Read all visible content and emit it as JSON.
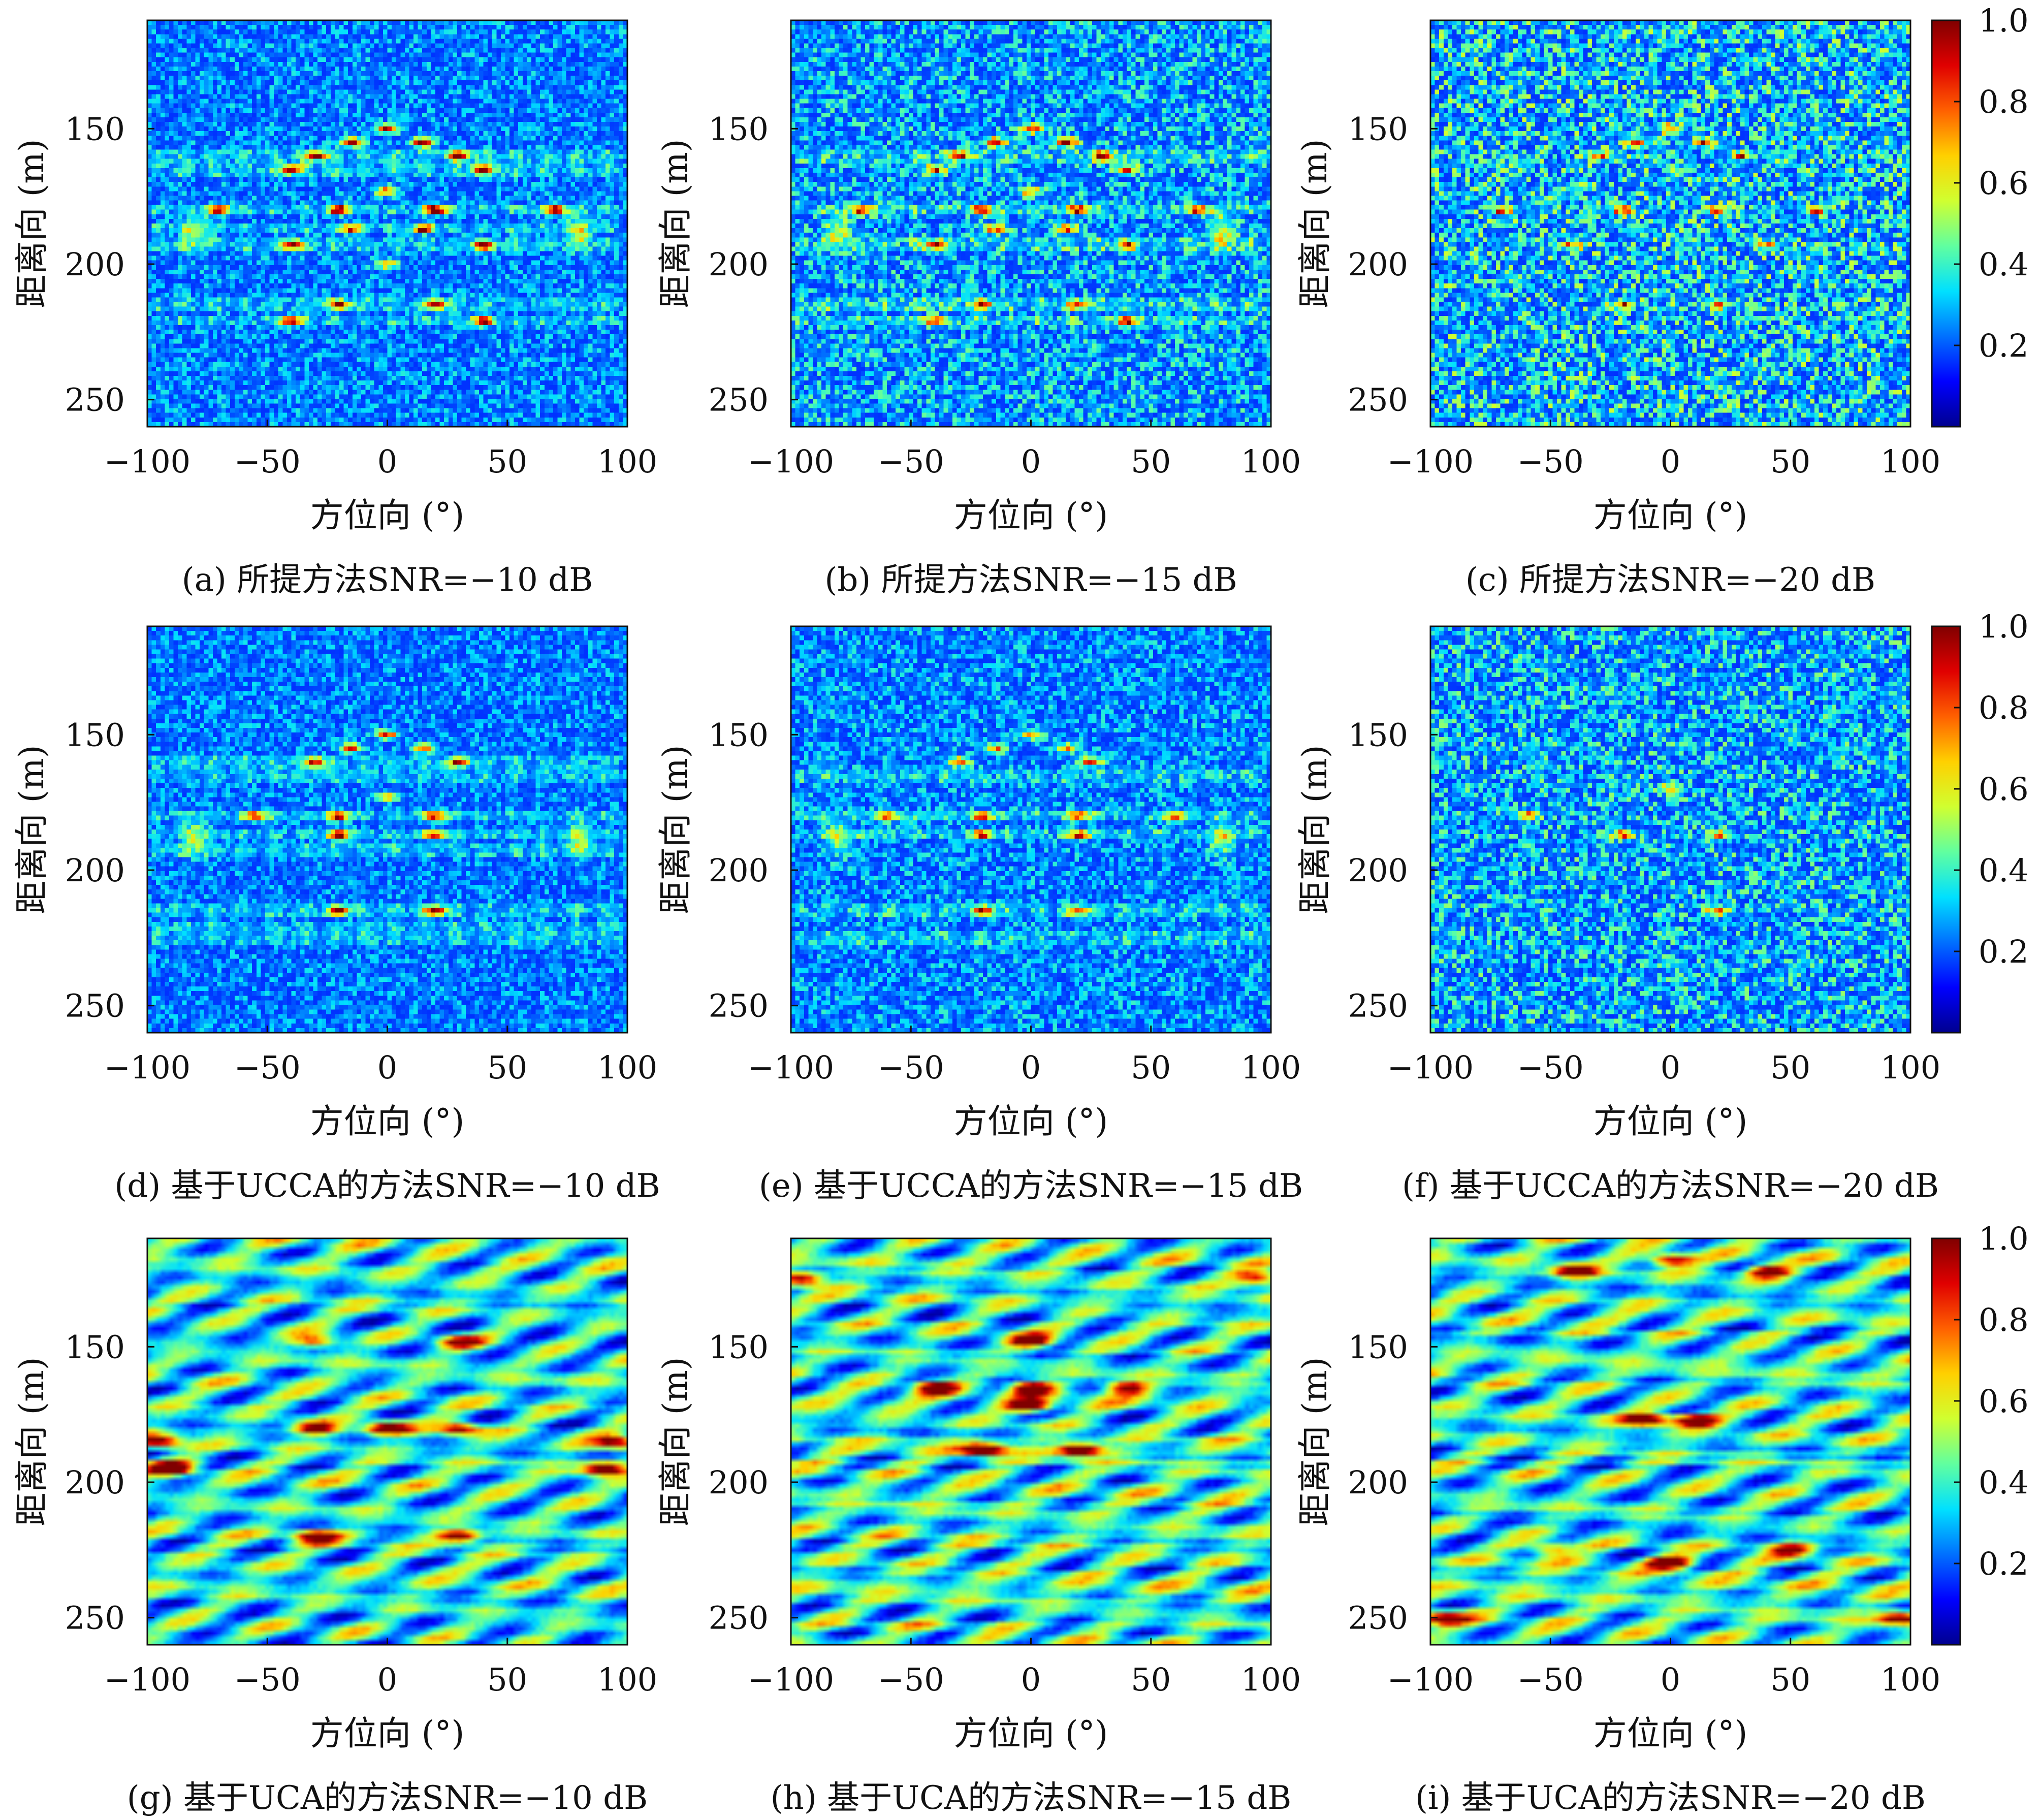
{
  "colors": {
    "colormap": [
      "#00008f",
      "#0000ff",
      "#0070ff",
      "#00e0ff",
      "#60ffa0",
      "#d0ff30",
      "#ffd000",
      "#ff6000",
      "#e00000",
      "#800000"
    ],
    "axis": "#111111",
    "background": "#ffffff"
  },
  "chart_data": [
    {
      "type": "heatmap",
      "id": "a",
      "caption": "(a) 所提方法SNR=−10 dB",
      "xlabel": "方位向 (°)",
      "ylabel": "距离向 (m)",
      "xlim": [
        -100,
        100
      ],
      "ylim": [
        260,
        110
      ],
      "xticks": [
        "−100",
        "−50",
        "0",
        "50",
        "100"
      ],
      "yticks": [
        "150",
        "200",
        "250"
      ],
      "noise": 0.22,
      "sharp": 1,
      "colorbar": false,
      "targets": [
        [
          0,
          150,
          0.7
        ],
        [
          -15,
          155,
          0.8
        ],
        [
          15,
          155,
          0.8
        ],
        [
          -30,
          160,
          0.8
        ],
        [
          30,
          160,
          0.8
        ],
        [
          -40,
          165,
          0.75
        ],
        [
          40,
          165,
          0.75
        ],
        [
          0,
          173,
          0.6
        ],
        [
          -70,
          180,
          0.75
        ],
        [
          -20,
          180,
          0.8
        ],
        [
          20,
          180,
          0.85
        ],
        [
          70,
          180,
          0.8
        ],
        [
          -15,
          187,
          0.65
        ],
        [
          15,
          187,
          0.65
        ],
        [
          -40,
          193,
          0.75
        ],
        [
          40,
          193,
          0.75
        ],
        [
          0,
          200,
          0.45
        ],
        [
          -20,
          215,
          0.7
        ],
        [
          20,
          215,
          0.75
        ],
        [
          -40,
          221,
          0.8
        ],
        [
          40,
          221,
          0.8
        ]
      ],
      "stripes": [
        160,
        165,
        180,
        187,
        193,
        215,
        221
      ],
      "blobs": [
        [
          -80,
          188
        ],
        [
          80,
          188
        ]
      ]
    },
    {
      "type": "heatmap",
      "id": "b",
      "caption": "(b) 所提方法SNR=−15 dB",
      "xlabel": "方位向 (°)",
      "ylabel": "距离向 (m)",
      "xlim": [
        -100,
        100
      ],
      "ylim": [
        260,
        110
      ],
      "xticks": [
        "−100",
        "−50",
        "0",
        "50",
        "100"
      ],
      "yticks": [
        "150",
        "200",
        "250"
      ],
      "noise": 0.3,
      "sharp": 1,
      "colorbar": false,
      "targets": [
        [
          0,
          150,
          0.6
        ],
        [
          -15,
          155,
          0.65
        ],
        [
          15,
          155,
          0.65
        ],
        [
          -30,
          160,
          0.65
        ],
        [
          30,
          160,
          0.65
        ],
        [
          -40,
          165,
          0.6
        ],
        [
          40,
          165,
          0.6
        ],
        [
          0,
          173,
          0.5
        ],
        [
          -70,
          180,
          0.65
        ],
        [
          -20,
          180,
          0.7
        ],
        [
          20,
          180,
          0.7
        ],
        [
          70,
          180,
          0.65
        ],
        [
          -15,
          187,
          0.55
        ],
        [
          15,
          187,
          0.55
        ],
        [
          -40,
          193,
          0.6
        ],
        [
          40,
          193,
          0.6
        ],
        [
          -20,
          215,
          0.6
        ],
        [
          20,
          215,
          0.6
        ],
        [
          -40,
          221,
          0.65
        ],
        [
          40,
          221,
          0.65
        ]
      ],
      "stripes": [
        160,
        180,
        193,
        215,
        221
      ],
      "blobs": [
        [
          -80,
          188
        ],
        [
          80,
          188
        ]
      ]
    },
    {
      "type": "heatmap",
      "id": "c",
      "caption": "(c) 所提方法SNR=−20 dB",
      "xlabel": "方位向 (°)",
      "ylabel": "距离向 (m)",
      "xlim": [
        -100,
        100
      ],
      "ylim": [
        260,
        110
      ],
      "xticks": [
        "−100",
        "−50",
        "0",
        "50",
        "100"
      ],
      "yticks": [
        "150",
        "200",
        "250"
      ],
      "noise": 0.4,
      "sharp": 1,
      "colorbar": true,
      "cbticks": [
        "0.2",
        "0.4",
        "0.6",
        "0.8",
        "1.0"
      ],
      "targets": [
        [
          0,
          150,
          0.5
        ],
        [
          -15,
          155,
          0.5
        ],
        [
          15,
          155,
          0.5
        ],
        [
          -30,
          160,
          0.5
        ],
        [
          30,
          160,
          0.5
        ],
        [
          -20,
          180,
          0.55
        ],
        [
          20,
          180,
          0.55
        ],
        [
          -70,
          180,
          0.55
        ],
        [
          60,
          180,
          0.55
        ],
        [
          -40,
          193,
          0.5
        ],
        [
          40,
          193,
          0.5
        ],
        [
          -20,
          215,
          0.5
        ],
        [
          20,
          215,
          0.5
        ]
      ],
      "stripes": [],
      "blobs": []
    },
    {
      "type": "heatmap",
      "id": "d",
      "caption": "(d) 基于UCCA的方法SNR=−10 dB",
      "xlabel": "方位向 (°)",
      "ylabel": "距离向 (m)",
      "xlim": [
        -100,
        100
      ],
      "ylim": [
        260,
        110
      ],
      "xticks": [
        "−100",
        "−50",
        "0",
        "50",
        "100"
      ],
      "yticks": [
        "150",
        "200",
        "250"
      ],
      "noise": 0.2,
      "sharp": 1,
      "colorbar": false,
      "targets": [
        [
          0,
          150,
          0.6
        ],
        [
          -15,
          155,
          0.6
        ],
        [
          15,
          155,
          0.6
        ],
        [
          -30,
          160,
          0.65
        ],
        [
          30,
          160,
          0.65
        ],
        [
          0,
          173,
          0.55
        ],
        [
          -55,
          180,
          0.65
        ],
        [
          -20,
          180,
          0.7
        ],
        [
          20,
          180,
          0.7
        ],
        [
          -20,
          187,
          0.8
        ],
        [
          20,
          187,
          0.75
        ],
        [
          -20,
          215,
          0.8
        ],
        [
          20,
          215,
          0.75
        ]
      ],
      "stripes": [
        160,
        165,
        180,
        187,
        193,
        215,
        221,
        225
      ],
      "blobs": [
        [
          -80,
          188
        ],
        [
          80,
          188
        ]
      ]
    },
    {
      "type": "heatmap",
      "id": "e",
      "caption": "(e) 基于UCCA的方法SNR=−15 dB",
      "xlabel": "方位向 (°)",
      "ylabel": "距离向 (m)",
      "xlim": [
        -100,
        100
      ],
      "ylim": [
        260,
        110
      ],
      "xticks": [
        "−100",
        "−50",
        "0",
        "50",
        "100"
      ],
      "yticks": [
        "150",
        "200",
        "250"
      ],
      "noise": 0.24,
      "sharp": 1,
      "colorbar": false,
      "targets": [
        [
          0,
          150,
          0.5
        ],
        [
          -15,
          155,
          0.5
        ],
        [
          15,
          155,
          0.5
        ],
        [
          -30,
          160,
          0.6
        ],
        [
          25,
          160,
          0.65
        ],
        [
          -60,
          180,
          0.55
        ],
        [
          -20,
          180,
          0.55
        ],
        [
          20,
          180,
          0.55
        ],
        [
          60,
          180,
          0.55
        ],
        [
          -20,
          187,
          0.6
        ],
        [
          20,
          187,
          0.6
        ],
        [
          -20,
          215,
          0.6
        ],
        [
          20,
          215,
          0.6
        ]
      ],
      "stripes": [
        165,
        180,
        187,
        215,
        225
      ],
      "blobs": [
        [
          -80,
          188
        ],
        [
          80,
          188
        ]
      ]
    },
    {
      "type": "heatmap",
      "id": "f",
      "caption": "(f) 基于UCCA的方法SNR=−20 dB",
      "xlabel": "方位向 (°)",
      "ylabel": "距离向 (m)",
      "xlim": [
        -100,
        100
      ],
      "ylim": [
        260,
        110
      ],
      "xticks": [
        "−100",
        "−50",
        "0",
        "50",
        "100"
      ],
      "yticks": [
        "150",
        "200",
        "250"
      ],
      "noise": 0.34,
      "sharp": 1,
      "colorbar": true,
      "cbticks": [
        "0.2",
        "0.4",
        "0.6",
        "0.8",
        "1.0"
      ],
      "targets": [
        [
          -60,
          180,
          0.5
        ],
        [
          -20,
          187,
          0.55
        ],
        [
          20,
          187,
          0.5
        ],
        [
          20,
          215,
          0.55
        ],
        [
          0,
          170,
          0.45
        ]
      ],
      "stripes": [],
      "blobs": []
    },
    {
      "type": "heatmap",
      "id": "g",
      "caption": "(g) 基于UCA的方法SNR=−10 dB",
      "xlabel": "方位向 (°)",
      "ylabel": "距离向 (m)",
      "xlim": [
        -100,
        100
      ],
      "ylim": [
        260,
        110
      ],
      "xticks": [
        "−100",
        "−50",
        "0",
        "50",
        "100"
      ],
      "yticks": [
        "150",
        "200",
        "250"
      ],
      "noise": 0.3,
      "sharp": 0,
      "colorbar": false,
      "targets": [
        [
          0,
          180,
          0.8
        ],
        [
          -30,
          180,
          0.7
        ],
        [
          30,
          180,
          0.7
        ],
        [
          -95,
          185,
          0.8
        ],
        [
          95,
          185,
          0.75
        ],
        [
          -90,
          195,
          0.85
        ],
        [
          90,
          195,
          0.8
        ],
        [
          -30,
          220,
          0.75
        ],
        [
          30,
          220,
          0.75
        ],
        [
          -30,
          148,
          0.6
        ],
        [
          30,
          148,
          0.6
        ]
      ],
      "stripes": [],
      "blobs": []
    },
    {
      "type": "heatmap",
      "id": "h",
      "caption": "(h) 基于UCA的方法SNR=−15 dB",
      "xlabel": "方位向 (°)",
      "ylabel": "距离向 (m)",
      "xlim": [
        -100,
        100
      ],
      "ylim": [
        260,
        110
      ],
      "xticks": [
        "−100",
        "−50",
        "0",
        "50",
        "100"
      ],
      "yticks": [
        "150",
        "200",
        "250"
      ],
      "noise": 0.38,
      "sharp": 0,
      "colorbar": false,
      "targets": [
        [
          0,
          165,
          0.85
        ],
        [
          -40,
          165,
          0.75
        ],
        [
          40,
          165,
          0.75
        ],
        [
          0,
          172,
          0.8
        ],
        [
          -20,
          188,
          0.85
        ],
        [
          20,
          188,
          0.85
        ],
        [
          -95,
          125,
          0.75
        ],
        [
          95,
          125,
          0.7
        ],
        [
          0,
          148,
          0.75
        ]
      ],
      "stripes": [],
      "blobs": []
    },
    {
      "type": "heatmap",
      "id": "i",
      "caption": "(i) 基于UCA的方法SNR=−20 dB",
      "xlabel": "方位向 (°)",
      "ylabel": "距离向 (m)",
      "xlim": [
        -100,
        100
      ],
      "ylim": [
        260,
        110
      ],
      "xticks": [
        "−100",
        "−50",
        "0",
        "50",
        "100"
      ],
      "yticks": [
        "150",
        "200",
        "250"
      ],
      "noise": 0.36,
      "sharp": 0,
      "colorbar": true,
      "cbticks": [
        "0.2",
        "0.4",
        "0.6",
        "0.8",
        "1.0"
      ],
      "targets": [
        [
          -40,
          122,
          0.75
        ],
        [
          0,
          118,
          0.75
        ],
        [
          40,
          122,
          0.75
        ],
        [
          -10,
          177,
          0.8
        ],
        [
          10,
          177,
          0.8
        ],
        [
          0,
          230,
          0.85
        ],
        [
          -95,
          250,
          0.75
        ],
        [
          95,
          250,
          0.7
        ],
        [
          -50,
          225,
          0.6
        ],
        [
          50,
          225,
          0.6
        ]
      ],
      "stripes": [],
      "blobs": []
    }
  ]
}
